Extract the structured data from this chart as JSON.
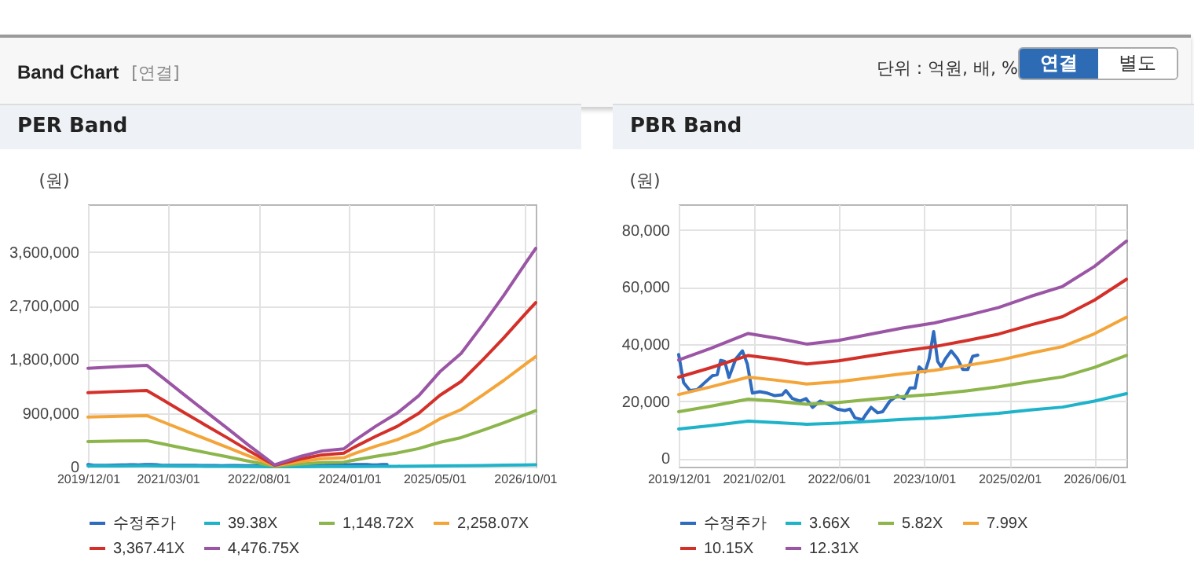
{
  "chart_data": [
    {
      "type": "other",
      "title": "Band Chart",
      "annotations": [
        "[연결]",
        "단위 : 억원, 배, %",
        "연결",
        "별도"
      ]
    },
    {
      "type": "line",
      "title": "PER Band",
      "ylabel": "(원)",
      "grid": true,
      "legend": "bottom",
      "xlim": [
        "2019-12-01",
        "2026-12-01"
      ],
      "xticks": [
        {
          "value": "2019-12-01",
          "label": "2019/12/01"
        },
        {
          "value": "2021-03-01",
          "label": "2021/03/01"
        },
        {
          "value": "2022-08-01",
          "label": "2022/08/01"
        },
        {
          "value": "2024-01-01",
          "label": "2024/01/01"
        },
        {
          "value": "2025-05-01",
          "label": "2025/05/01"
        },
        {
          "value": "2026-10-01",
          "label": "2026/10/01"
        }
      ],
      "ylim": [
        0,
        4400000
      ],
      "yticks": [
        0,
        {
          "value": 900000,
          "label": "900,000"
        },
        {
          "value": 1800000,
          "label": "1,800,000"
        },
        {
          "value": 2700000,
          "label": "2,700,000"
        },
        {
          "value": 3600000,
          "label": "3,600,000"
        }
      ],
      "x": [
        "2019-12-01",
        "2020-06-01",
        "2020-11-01",
        "2021-02-01",
        "2021-06-01",
        "2021-10-01",
        "2022-02-01",
        "2022-06-01",
        "2022-10-01",
        "2022-11-01",
        "2022-12-01",
        "2023-04-01",
        "2023-08-01",
        "2023-12-01",
        "2024-02-01",
        "2024-06-01",
        "2024-10-01",
        "2025-02-01",
        "2025-06-01",
        "2025-10-01",
        "2026-02-01",
        "2026-06-01",
        "2026-10-01",
        "2026-12-01"
      ],
      "series": [
        {
          "name": "수정주가",
          "color": "#2f6bbf",
          "x": [
            "2019-12-01",
            "2019-12-29",
            "2020-02-03",
            "2020-03-15",
            "2020-04-28",
            "2020-06-10",
            "2020-07-08",
            "2020-07-28",
            "2020-08-20",
            "2020-09-13",
            "2020-10-22",
            "2020-11-29",
            "2020-12-27",
            "2021-01-25",
            "2021-03-08",
            "2021-04-20",
            "2021-06-02",
            "2021-07-14",
            "2021-08-04",
            "2021-09-10",
            "2021-10-23",
            "2021-11-27",
            "2022-01-04",
            "2022-02-15",
            "2022-03-28",
            "2022-05-25",
            "2022-07-07",
            "2022-08-05",
            "2022-09-03",
            "2022-10-16",
            "2022-11-05",
            "2022-12-04",
            "2023-01-10",
            "2023-02-08",
            "2023-03-21",
            "2023-05-03",
            "2023-06-10",
            "2023-07-14",
            "2023-08-12",
            "2023-09-04",
            "2023-10-08",
            "2023-10-31",
            "2023-11-26",
            "2023-12-19",
            "2024-01-08",
            "2024-02-01",
            "2024-03-05",
            "2024-04-11",
            "2024-05-10",
            "2024-06-08",
            "2024-07-06",
            "2024-08-04"
          ],
          "values": [
            36300,
            26500,
            23700,
            24000,
            26500,
            28900,
            29300,
            34300,
            33900,
            28300,
            34800,
            37600,
            33000,
            22800,
            23300,
            22800,
            21900,
            22200,
            23700,
            20900,
            20000,
            20900,
            17800,
            20000,
            19100,
            17200,
            16700,
            17200,
            14100,
            13500,
            15400,
            17800,
            15900,
            16300,
            20000,
            21900,
            20900,
            24600,
            24600,
            32000,
            30200,
            34800,
            44400,
            33900,
            32000,
            34800,
            37600,
            34800,
            31100,
            31100,
            35700,
            36100
          ]
        },
        {
          "name": "39.38X",
          "color": "#1fb3c9",
          "values": [
            14500,
            14800,
            15000,
            13100,
            10600,
            8200,
            5700,
            3300,
            900,
            300,
            500,
            1500,
            2300,
            2600,
            3900,
            6000,
            7900,
            10500,
            14000,
            16700,
            20900,
            25300,
            29900,
            32200
          ]
        },
        {
          "name": "1,148.72X",
          "color": "#8cb54b",
          "values": [
            423000,
            431000,
            436000,
            382000,
            310000,
            239000,
            167000,
            95000,
            26000,
            8000,
            15000,
            45000,
            68000,
            77000,
            113000,
            174000,
            231000,
            305000,
            408000,
            488000,
            611000,
            736000,
            872000,
            939000
          ]
        },
        {
          "name": "2,258.07X",
          "color": "#f4a53a",
          "values": [
            832000,
            847000,
            857000,
            751000,
            610000,
            469000,
            328000,
            186000,
            50000,
            15000,
            30000,
            88000,
            134000,
            151000,
            222000,
            343000,
            454000,
            600000,
            801000,
            958000,
            1200000,
            1446000,
            1714000,
            1845000
          ]
        },
        {
          "name": "3,367.41X",
          "color": "#d3302a",
          "values": [
            1241000,
            1263000,
            1278000,
            1120000,
            910000,
            699000,
            489000,
            278000,
            75000,
            23000,
            45000,
            132000,
            199000,
            226000,
            331000,
            511000,
            677000,
            895000,
            1196000,
            1429000,
            1790000,
            2158000,
            2557000,
            2752000
          ]
        },
        {
          "name": "4,476.75X",
          "color": "#9b55a5",
          "values": [
            1650000,
            1680000,
            1700000,
            1490000,
            1210000,
            930000,
            650000,
            370000,
            100000,
            30000,
            60000,
            175000,
            265000,
            300000,
            440000,
            680000,
            900000,
            1190000,
            1590000,
            1900000,
            2380000,
            2870000,
            3400000,
            3660000
          ]
        }
      ]
    },
    {
      "type": "line",
      "title": "PBR Band",
      "ylabel": "(원)",
      "grid": true,
      "legend": "bottom",
      "xlim": [
        "2019-12-01",
        "2026-12-01"
      ],
      "xticks": [
        {
          "value": "2019-12-01",
          "label": "2019/12/01"
        },
        {
          "value": "2021-02-01",
          "label": "2021/02/01"
        },
        {
          "value": "2022-06-01",
          "label": "2022/06/01"
        },
        {
          "value": "2023-10-01",
          "label": "2023/10/01"
        },
        {
          "value": "2025-02-01",
          "label": "2025/02/01"
        },
        {
          "value": "2026-06-01",
          "label": "2026/06/01"
        }
      ],
      "ylim": [
        -3000,
        89000
      ],
      "yticks": [
        0,
        {
          "value": 20000,
          "label": "20,000"
        },
        {
          "value": 40000,
          "label": "40,000"
        },
        {
          "value": 60000,
          "label": "60,000"
        },
        {
          "value": 80000,
          "label": "80,000"
        }
      ],
      "x": [
        "2019-12-01",
        "2020-06-01",
        "2021-01-01",
        "2021-06-01",
        "2021-12-01",
        "2022-06-01",
        "2022-12-01",
        "2023-06-01",
        "2023-12-01",
        "2024-06-01",
        "2024-12-01",
        "2025-06-01",
        "2025-12-01",
        "2026-06-01",
        "2026-12-01"
      ],
      "series": [
        {
          "name": "수정주가",
          "color": "#2f6bbf",
          "x": [
            "2019-12-01",
            "2019-12-29",
            "2020-02-03",
            "2020-03-15",
            "2020-04-28",
            "2020-06-10",
            "2020-07-08",
            "2020-07-28",
            "2020-08-20",
            "2020-09-13",
            "2020-10-22",
            "2020-11-29",
            "2020-12-27",
            "2021-01-25",
            "2021-03-08",
            "2021-04-20",
            "2021-06-02",
            "2021-07-14",
            "2021-08-04",
            "2021-09-10",
            "2021-10-23",
            "2021-11-27",
            "2022-01-04",
            "2022-02-15",
            "2022-03-28",
            "2022-05-25",
            "2022-07-07",
            "2022-08-05",
            "2022-09-03",
            "2022-10-16",
            "2022-11-05",
            "2022-12-04",
            "2023-01-10",
            "2023-02-08",
            "2023-03-21",
            "2023-05-03",
            "2023-06-10",
            "2023-07-14",
            "2023-08-12",
            "2023-09-04",
            "2023-10-08",
            "2023-10-31",
            "2023-11-26",
            "2023-12-19",
            "2024-01-08",
            "2024-02-01",
            "2024-03-05",
            "2024-04-11",
            "2024-05-10",
            "2024-06-08",
            "2024-07-06",
            "2024-08-04"
          ],
          "values": [
            36300,
            26500,
            23700,
            24000,
            26500,
            28900,
            29300,
            34300,
            33900,
            28300,
            34800,
            37600,
            33000,
            22800,
            23300,
            22800,
            21900,
            22200,
            23700,
            20900,
            20000,
            20900,
            17800,
            20000,
            19100,
            17200,
            16700,
            17200,
            14100,
            13500,
            15400,
            17800,
            15900,
            16300,
            20000,
            21900,
            20900,
            24600,
            24600,
            32000,
            30200,
            34800,
            44400,
            33900,
            32000,
            34800,
            37600,
            34800,
            31100,
            31100,
            35700,
            36100
          ]
        },
        {
          "name": "3.66X",
          "color": "#1fb3c9",
          "values": [
            10200,
            11400,
            13000,
            12500,
            11900,
            12300,
            12900,
            13600,
            14100,
            14900,
            15700,
            16900,
            17900,
            20000,
            22600
          ]
        },
        {
          "name": "5.82X",
          "color": "#8cb54b",
          "values": [
            16300,
            18200,
            20700,
            20000,
            18900,
            19500,
            20600,
            21600,
            22400,
            23600,
            25000,
            26800,
            28500,
            31800,
            36000
          ]
        },
        {
          "name": "7.99X",
          "color": "#f4a53a",
          "values": [
            22300,
            25000,
            28400,
            27400,
            26000,
            26800,
            28200,
            29600,
            30800,
            32500,
            34300,
            36800,
            39100,
            43600,
            49400
          ]
        },
        {
          "name": "10.15X",
          "color": "#d3302a",
          "values": [
            28400,
            31700,
            36000,
            34800,
            33000,
            34100,
            35900,
            37600,
            39100,
            41200,
            43500,
            46700,
            49600,
            55400,
            62700
          ]
        },
        {
          "name": "12.31X",
          "color": "#9b55a5",
          "values": [
            34400,
            38500,
            43700,
            42200,
            40000,
            41300,
            43500,
            45600,
            47400,
            50000,
            52800,
            56700,
            60200,
            67200,
            76100
          ]
        }
      ]
    }
  ]
}
